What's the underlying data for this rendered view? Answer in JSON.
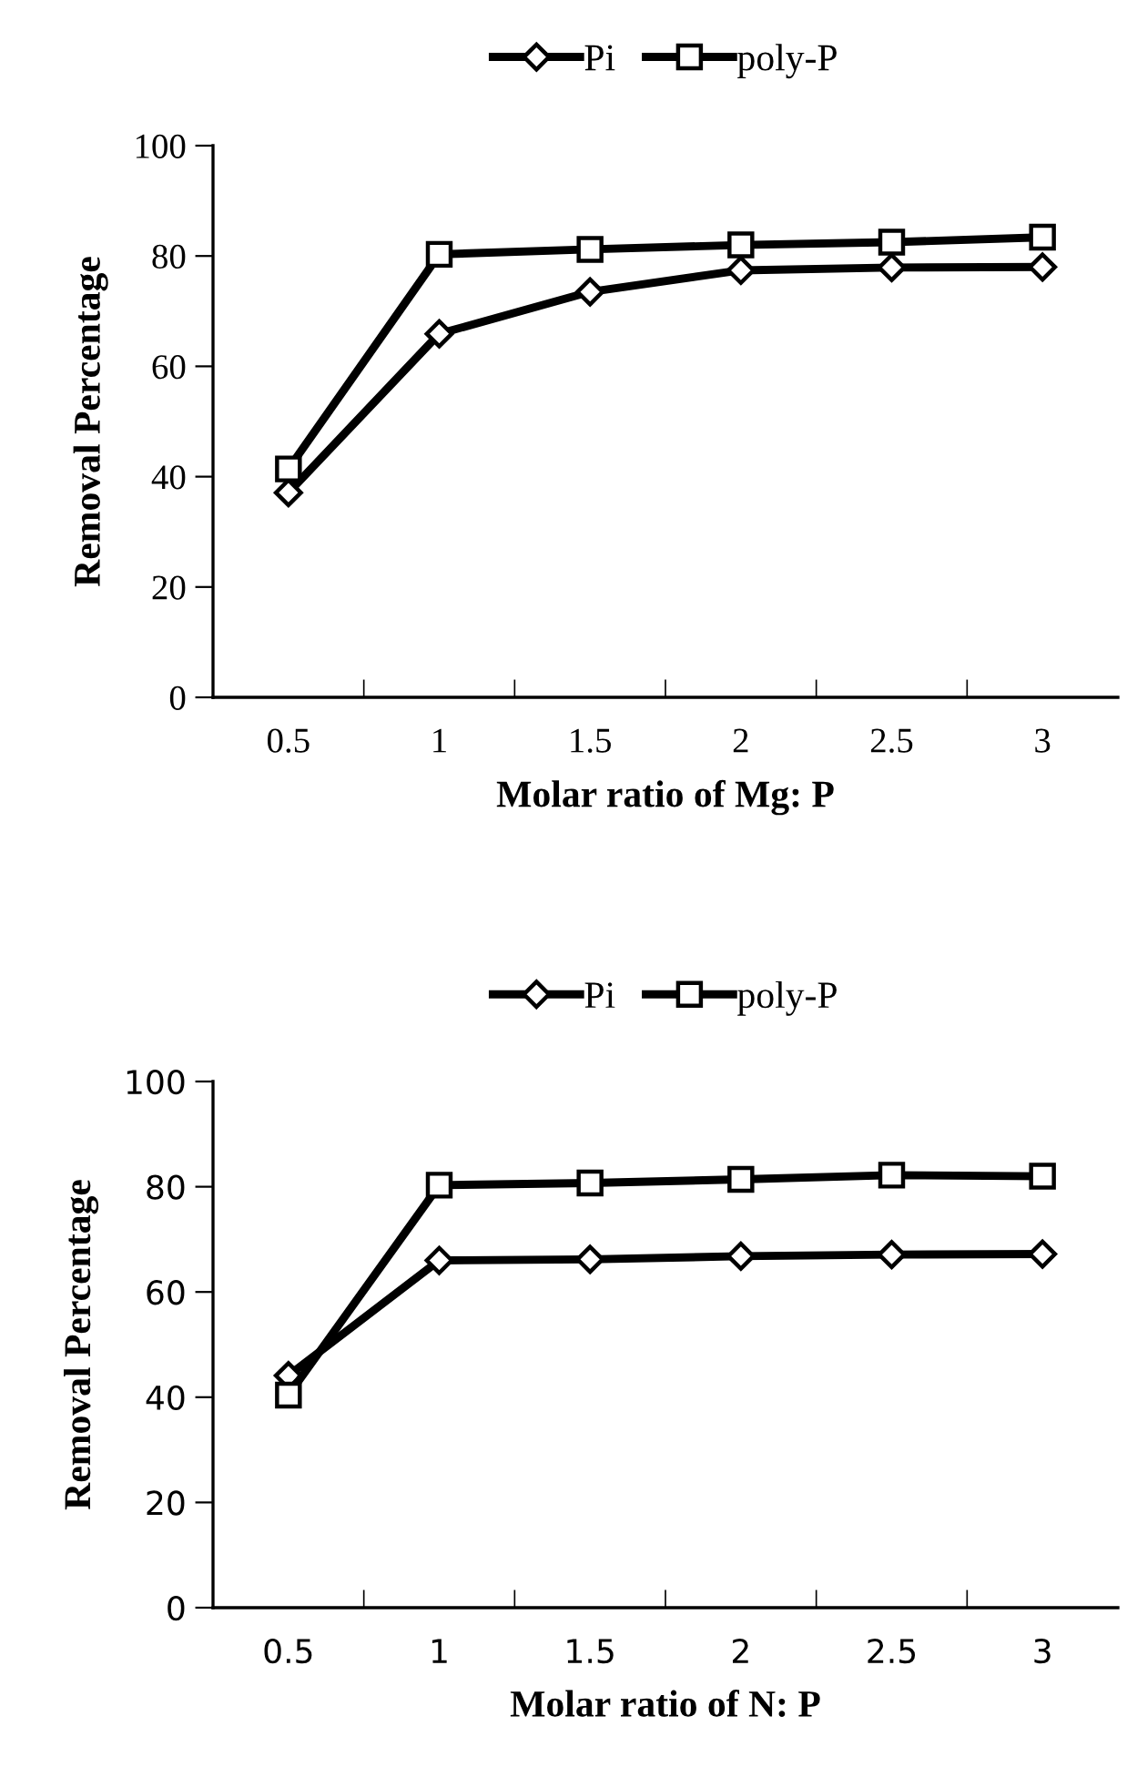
{
  "chart_data": [
    {
      "type": "line",
      "xlabel": "Molar ratio of Mg: P",
      "ylabel": "Removal Percentage",
      "categories": [
        "0.5",
        "1",
        "1.5",
        "2",
        "2.5",
        "3"
      ],
      "ylim": [
        0,
        100
      ],
      "yticks": [
        0,
        20,
        40,
        60,
        80,
        100
      ],
      "legend": "top",
      "grid": false,
      "series": [
        {
          "name": "Pi",
          "color": "#000000",
          "marker": "diamond",
          "values": [
            37.1,
            65.9,
            73.5,
            77.4,
            77.9,
            78.0
          ]
        },
        {
          "name": "poly-P",
          "color": "#000000",
          "marker": "square",
          "values": [
            41.4,
            80.3,
            81.2,
            82.0,
            82.5,
            83.4
          ]
        }
      ]
    },
    {
      "type": "line",
      "xlabel": "Molar ratio of N: P",
      "ylabel": "Removal Percentage",
      "categories": [
        "0.5",
        "1",
        "1.5",
        "2",
        "2.5",
        "3"
      ],
      "ylim": [
        0,
        100
      ],
      "yticks": [
        0,
        20,
        40,
        60,
        80,
        100
      ],
      "legend": "top",
      "grid": false,
      "series": [
        {
          "name": "Pi",
          "color": "#000000",
          "marker": "diamond",
          "values": [
            44.1,
            66.0,
            66.2,
            66.8,
            67.1,
            67.2
          ]
        },
        {
          "name": "poly-P",
          "color": "#000000",
          "marker": "square",
          "values": [
            40.4,
            80.3,
            80.7,
            81.4,
            82.2,
            82.0
          ]
        }
      ]
    }
  ]
}
